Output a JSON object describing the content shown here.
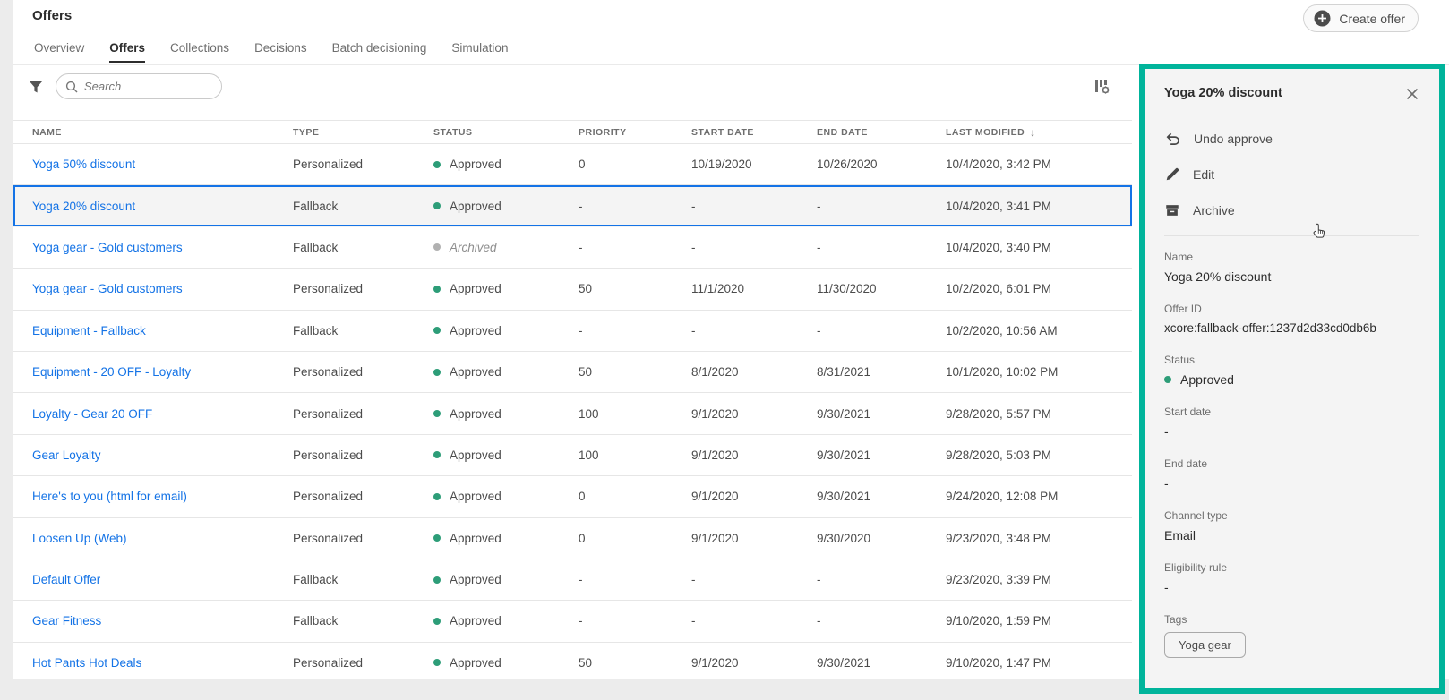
{
  "header": {
    "title": "Offers",
    "tabs": [
      {
        "label": "Overview",
        "active": false
      },
      {
        "label": "Offers",
        "active": true
      },
      {
        "label": "Collections",
        "active": false
      },
      {
        "label": "Decisions",
        "active": false
      },
      {
        "label": "Batch decisioning",
        "active": false
      },
      {
        "label": "Simulation",
        "active": false
      }
    ],
    "create_offer_label": "Create offer"
  },
  "toolbar": {
    "search_placeholder": "Search",
    "filter_icon": "funnel-icon",
    "column_settings_icon": "column-settings-icon"
  },
  "table": {
    "columns": [
      "NAME",
      "TYPE",
      "STATUS",
      "PRIORITY",
      "START DATE",
      "END DATE",
      "LAST MODIFIED"
    ],
    "sorted_column": "LAST MODIFIED",
    "sort_direction": "descending",
    "rows": [
      {
        "name": "Yoga 50% discount",
        "type": "Personalized",
        "status": "Approved",
        "priority": "0",
        "start_date": "10/19/2020",
        "end_date": "10/26/2020",
        "last_modified": "10/4/2020, 3:42 PM",
        "selected": false
      },
      {
        "name": "Yoga 20% discount",
        "type": "Fallback",
        "status": "Approved",
        "priority": "-",
        "start_date": "-",
        "end_date": "-",
        "last_modified": "10/4/2020, 3:41 PM",
        "selected": true
      },
      {
        "name": "Yoga gear - Gold customers",
        "type": "Fallback",
        "status": "Archived",
        "priority": "-",
        "start_date": "-",
        "end_date": "-",
        "last_modified": "10/4/2020, 3:40 PM",
        "selected": false
      },
      {
        "name": "Yoga gear - Gold customers",
        "type": "Personalized",
        "status": "Approved",
        "priority": "50",
        "start_date": "11/1/2020",
        "end_date": "11/30/2020",
        "last_modified": "10/2/2020, 6:01 PM",
        "selected": false
      },
      {
        "name": "Equipment - Fallback",
        "type": "Fallback",
        "status": "Approved",
        "priority": "-",
        "start_date": "-",
        "end_date": "-",
        "last_modified": "10/2/2020, 10:56 AM",
        "selected": false
      },
      {
        "name": "Equipment - 20 OFF - Loyalty",
        "type": "Personalized",
        "status": "Approved",
        "priority": "50",
        "start_date": "8/1/2020",
        "end_date": "8/31/2021",
        "last_modified": "10/1/2020, 10:02 PM",
        "selected": false
      },
      {
        "name": "Loyalty - Gear 20 OFF",
        "type": "Personalized",
        "status": "Approved",
        "priority": "100",
        "start_date": "9/1/2020",
        "end_date": "9/30/2021",
        "last_modified": "9/28/2020, 5:57 PM",
        "selected": false
      },
      {
        "name": "Gear Loyalty",
        "type": "Personalized",
        "status": "Approved",
        "priority": "100",
        "start_date": "9/1/2020",
        "end_date": "9/30/2021",
        "last_modified": "9/28/2020, 5:03 PM",
        "selected": false
      },
      {
        "name": "Here's to you (html for email)",
        "type": "Personalized",
        "status": "Approved",
        "priority": "0",
        "start_date": "9/1/2020",
        "end_date": "9/30/2021",
        "last_modified": "9/24/2020, 12:08 PM",
        "selected": false
      },
      {
        "name": "Loosen Up (Web)",
        "type": "Personalized",
        "status": "Approved",
        "priority": "0",
        "start_date": "9/1/2020",
        "end_date": "9/30/2020",
        "last_modified": "9/23/2020, 3:48 PM",
        "selected": false
      },
      {
        "name": "Default Offer",
        "type": "Fallback",
        "status": "Approved",
        "priority": "-",
        "start_date": "-",
        "end_date": "-",
        "last_modified": "9/23/2020, 3:39 PM",
        "selected": false
      },
      {
        "name": "Gear Fitness",
        "type": "Fallback",
        "status": "Approved",
        "priority": "-",
        "start_date": "-",
        "end_date": "-",
        "last_modified": "9/10/2020, 1:59 PM",
        "selected": false
      },
      {
        "name": "Hot Pants Hot Deals",
        "type": "Personalized",
        "status": "Approved",
        "priority": "50",
        "start_date": "9/1/2020",
        "end_date": "9/30/2021",
        "last_modified": "9/10/2020, 1:47 PM",
        "selected": false
      }
    ]
  },
  "panel": {
    "title": "Yoga 20% discount",
    "actions": [
      {
        "label": "Undo approve",
        "icon": "undo-icon"
      },
      {
        "label": "Edit",
        "icon": "pencil-icon"
      },
      {
        "label": "Archive",
        "icon": "archive-icon"
      }
    ],
    "fields": {
      "name": {
        "label": "Name",
        "value": "Yoga 20% discount"
      },
      "offer_id": {
        "label": "Offer ID",
        "value": "xcore:fallback-offer:1237d2d33cd0db6b"
      },
      "status": {
        "label": "Status",
        "value": "Approved"
      },
      "start_date": {
        "label": "Start date",
        "value": "-"
      },
      "end_date": {
        "label": "End date",
        "value": "-"
      },
      "channel_type": {
        "label": "Channel type",
        "value": "Email"
      },
      "eligibility_rule": {
        "label": "Eligibility rule",
        "value": "-"
      },
      "tags": {
        "label": "Tags",
        "value": "Yoga gear"
      }
    }
  },
  "colors": {
    "link_blue": "#1473e6",
    "selection_blue": "#1473e6",
    "highlight_teal": "#00b49b",
    "status_green": "#2d9d78",
    "status_gray": "#b1b1b1"
  }
}
